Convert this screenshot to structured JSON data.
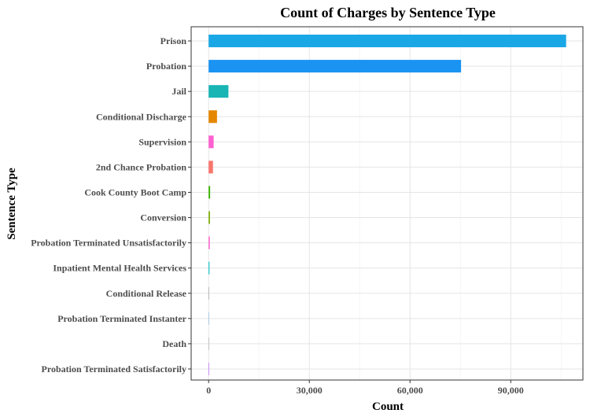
{
  "chart_data": {
    "type": "bar",
    "orientation": "horizontal",
    "title": "Count of Charges by Sentence Type",
    "xlabel": "Count",
    "ylabel": "Sentence Type",
    "xlim": [
      -5200,
      111500
    ],
    "x_ticks": [
      0,
      30000,
      60000,
      90000
    ],
    "x_tick_labels": [
      "0",
      "30,000",
      "60,000",
      "90,000"
    ],
    "grid": true,
    "legend": "none",
    "categories": [
      "Probation Terminated Satisfactorily",
      "Death",
      "Probation Terminated Instanter",
      "Conditional Release",
      "Inpatient Mental Health Services",
      "Probation Terminated Unsatisfactorily",
      "Conversion",
      "Cook County Boot Camp",
      "2nd Chance Probation",
      "Supervision",
      "Conditional Discharge",
      "Jail",
      "Probation",
      "Prison"
    ],
    "values": [
      5,
      30,
      60,
      100,
      250,
      350,
      400,
      450,
      1300,
      1500,
      2500,
      5900,
      75200,
      106500
    ],
    "colors": [
      "#f8766d",
      "#e58700",
      "#c99800",
      "#a3a500",
      "#6bb100",
      "#00ba38",
      "#00bf7d",
      "#00c0af",
      "#00bcd8",
      "#00b0f6",
      "#619cff",
      "#b983ff",
      "#e76bf3",
      "#fd61d1"
    ],
    "bar_colors": [
      "#c77cff",
      "#bdbdbd",
      "#9ecae1",
      "#b0b0b0",
      "#00bfc4",
      "#ff61cc",
      "#7cae00",
      "#39b600",
      "#f8766d",
      "#fd61d1",
      "#e58700",
      "#19b5b5",
      "#1a93f2",
      "#1aa7e6"
    ]
  }
}
